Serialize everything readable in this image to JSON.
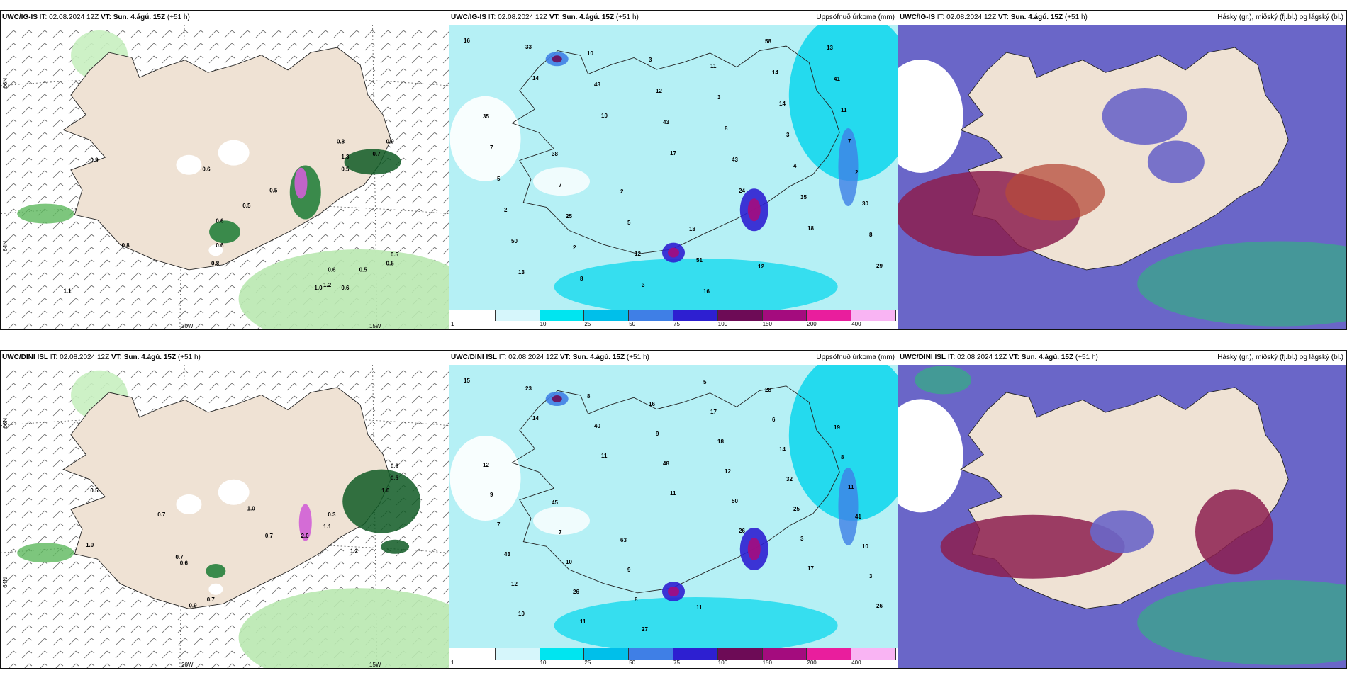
{
  "header_common": {
    "it_label": "IT:",
    "it": "02.08.2024 12Z",
    "vt_label": "VT:",
    "vt": "Sun. 4.ágú. 15Z",
    "lead": "(+51 h)"
  },
  "rows": [
    {
      "model": "UWC/IG-IS"
    },
    {
      "model": "UWC/DINI ISL"
    }
  ],
  "precip_title": "Uppsöfnuð úrkoma (mm)",
  "cloud_title": "Hásky (gr.), miðský (fj.bl.) og lágský (bl.)",
  "axis": {
    "lat66": "66N",
    "lat64": "64N",
    "lat65": "65N",
    "lat63": "63N",
    "lon20": "20W",
    "lon15": "15W",
    "lat63b": "63N",
    "lon15b": "15W"
  },
  "colorbar": {
    "labels": [
      "1",
      "10",
      "25",
      "50",
      "75",
      "100",
      "150",
      "200",
      "400"
    ],
    "colors": [
      "#ffffff",
      "#d6f6fb",
      "#00e5f0",
      "#00bfea",
      "#3f7fe6",
      "#2d1fd1",
      "#6d0b56",
      "#a40c7e",
      "#e91e9d",
      "#f9b4f3"
    ]
  },
  "top_precip_values": [
    "16",
    "14",
    "10",
    "17",
    "24",
    "18",
    "29",
    "33",
    "43",
    "43",
    "43",
    "35",
    "8",
    "13",
    "10",
    "12",
    "8",
    "4",
    "30",
    "50",
    "8",
    "3",
    "3",
    "3",
    "2",
    "2",
    "2",
    "3",
    "11",
    "14",
    "7",
    "5",
    "25",
    "12",
    "16",
    "14",
    "11",
    "7",
    "7",
    "5",
    "51",
    "58",
    "41",
    "35",
    "38",
    "2",
    "18",
    "12",
    "13"
  ],
  "bottom_precip_values": [
    "15",
    "14",
    "11",
    "11",
    "26",
    "17",
    "26",
    "23",
    "40",
    "48",
    "50",
    "3",
    "3",
    "10",
    "8",
    "9",
    "12",
    "25",
    "10",
    "12",
    "11",
    "16",
    "18",
    "32",
    "41",
    "43",
    "26",
    "27",
    "17",
    "14",
    "11",
    "7",
    "10",
    "8",
    "5",
    "6",
    "8",
    "9",
    "7",
    "9",
    "11",
    "28",
    "19",
    "12",
    "45",
    "63"
  ],
  "top_wind_values": [
    "0.9",
    "0.6",
    "0.5",
    "0.5",
    "0.6",
    "0.8",
    "0.6",
    "0.8",
    "1.1",
    "0.8",
    "0.5",
    "1.3",
    "0.7",
    "0.9",
    "0.5",
    "0.5",
    "0.6",
    "1.0",
    "1.2",
    "0.6",
    "0.5"
  ],
  "bottom_wind_values": [
    "0.5",
    "0.7",
    "1.0",
    "0.7",
    "0.7",
    "0.6",
    "1.0",
    "0.9",
    "0.7",
    "1.2",
    "0.3",
    "1.1",
    "2.0",
    "0.6",
    "0.5",
    "1.0"
  ]
}
